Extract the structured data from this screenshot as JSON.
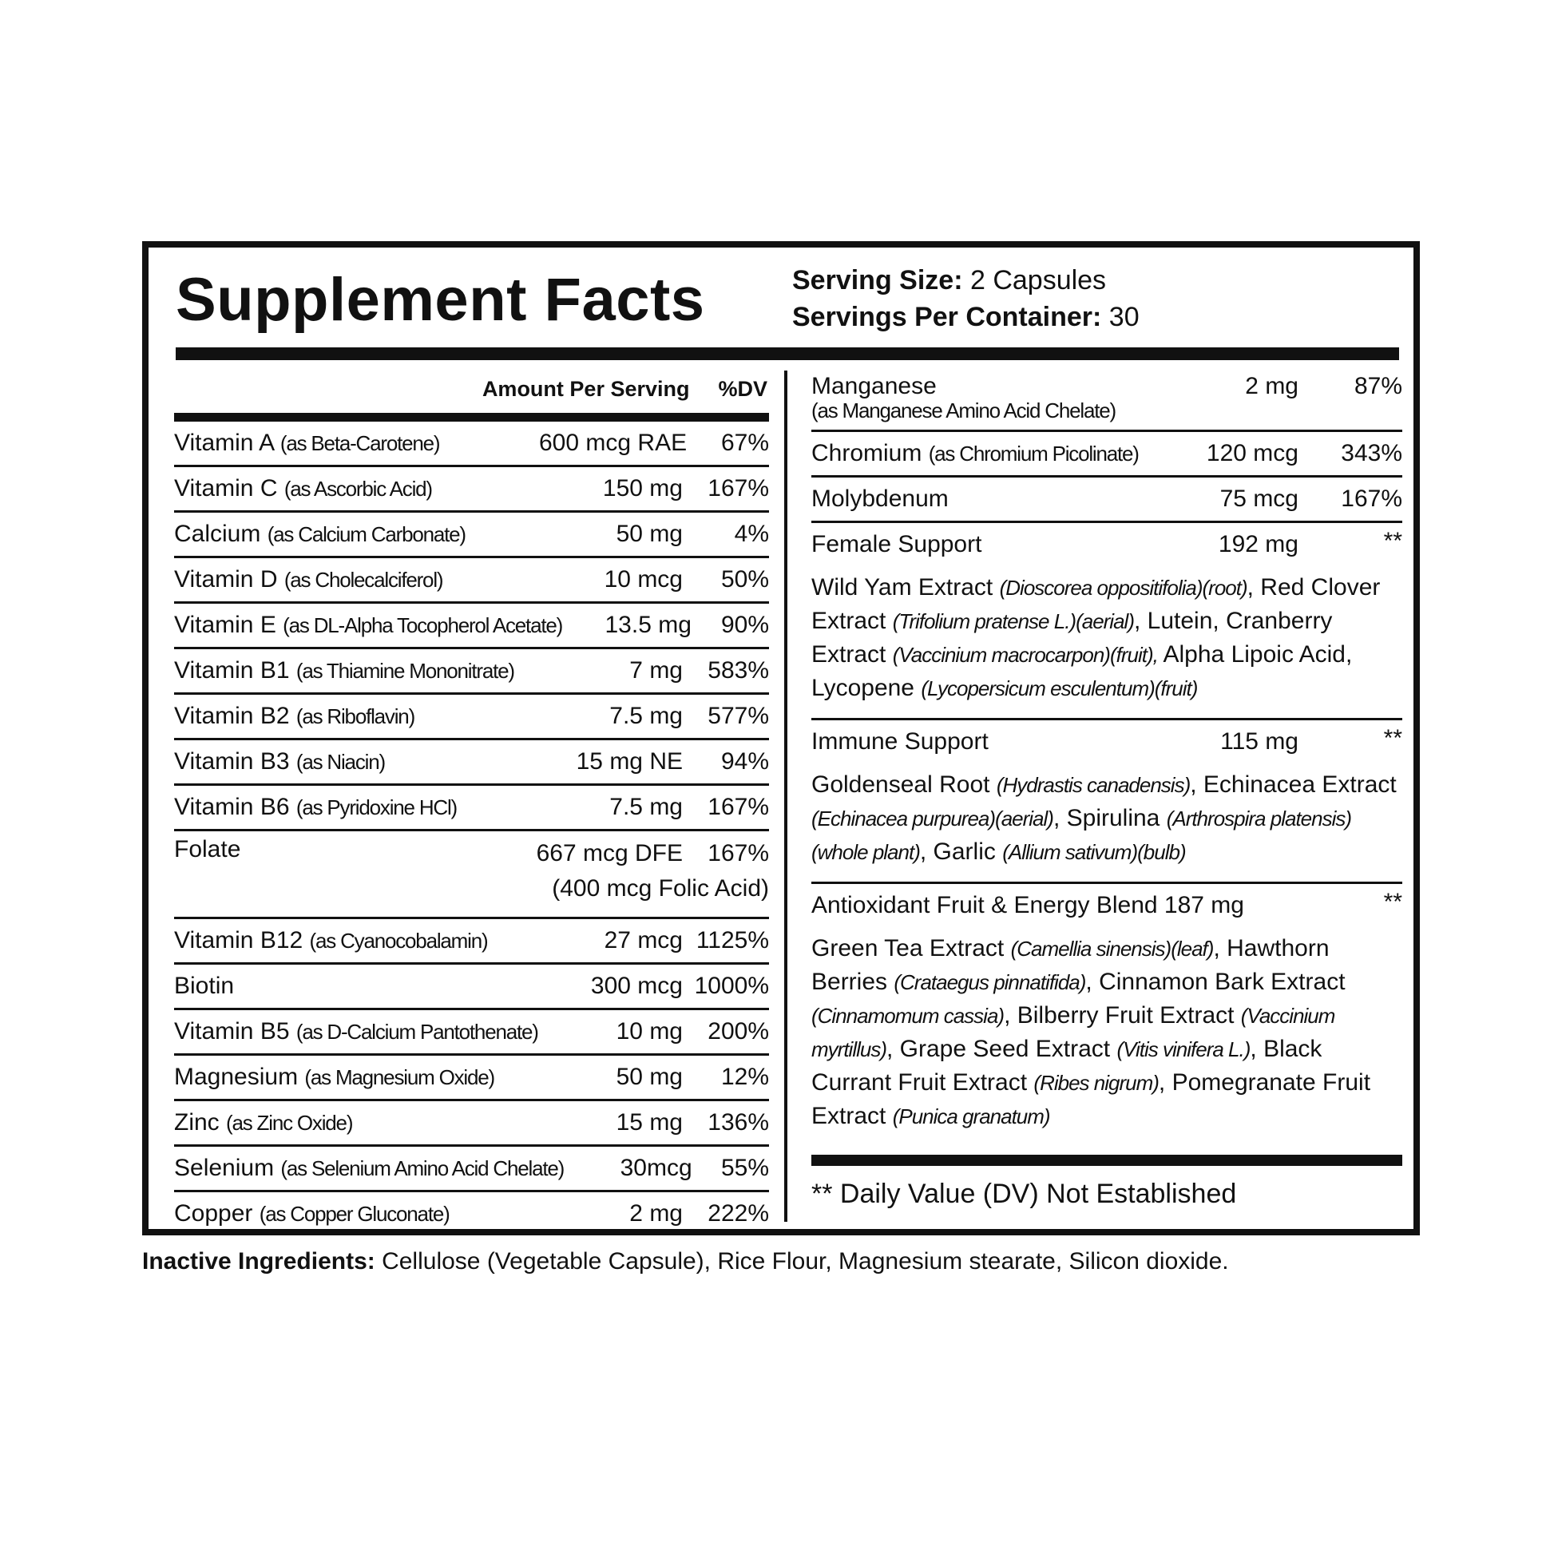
{
  "title": "Supplement Facts",
  "serving": {
    "size_label": "Serving Size:",
    "size_value": " 2 Capsules",
    "per_container_label": "Servings Per Container:",
    "per_container_value": " 30"
  },
  "header": {
    "amount": "Amount Per Serving",
    "dv": "%DV"
  },
  "left_rows": [
    {
      "name": "Vitamin A ",
      "source": "(as Beta-Carotene)",
      "amount": "600 mcg RAE",
      "dv": "67%"
    },
    {
      "name": "Vitamin C ",
      "source": "(as Ascorbic Acid)",
      "amount": "150 mg",
      "dv": "167%"
    },
    {
      "name": "Calcium ",
      "source": "(as Calcium Carbonate)",
      "amount": "50 mg",
      "dv": "4%"
    },
    {
      "name": "Vitamin D ",
      "source": "(as Cholecalciferol)",
      "amount": "10 mcg",
      "dv": "50%"
    },
    {
      "name": "Vitamin E ",
      "source": "(as DL-Alpha Tocopherol Acetate)",
      "amount": "13.5 mg",
      "dv": "90%"
    },
    {
      "name": "Vitamin B1 ",
      "source": "(as Thiamine Mononitrate)",
      "amount": "7 mg",
      "dv": "583%"
    },
    {
      "name": "Vitamin B2 ",
      "source": "(as Riboflavin)",
      "amount": "7.5 mg",
      "dv": "577%"
    },
    {
      "name": "Vitamin B3 ",
      "source": "(as Niacin)",
      "amount": "15 mg NE",
      "dv": "94%"
    },
    {
      "name": "Vitamin B6 ",
      "source": "(as Pyridoxine HCl)",
      "amount": "7.5 mg",
      "dv": "167%"
    },
    {
      "name": "Folate",
      "source": "",
      "amount": "667 mcg DFE",
      "dv": "167%",
      "note": "(400 mcg Folic Acid)"
    },
    {
      "name": "Vitamin B12 ",
      "source": "(as Cyanocobalamin)",
      "amount": "27 mcg",
      "dv": "1125%"
    },
    {
      "name": "Biotin",
      "source": "",
      "amount": "300 mcg",
      "dv": "1000%"
    },
    {
      "name": "Vitamin B5 ",
      "source": "(as D-Calcium Pantothenate)",
      "amount": "10 mg",
      "dv": "200%"
    },
    {
      "name": "Magnesium ",
      "source": "(as Magnesium Oxide)",
      "amount": "50 mg",
      "dv": "12%"
    },
    {
      "name": "Zinc ",
      "source": "(as Zinc Oxide)",
      "amount": "15 mg",
      "dv": "136%"
    },
    {
      "name": "Selenium ",
      "source": "(as Selenium Amino Acid Chelate)",
      "amount": "30mcg",
      "dv": "55%"
    },
    {
      "name": "Copper ",
      "source": "(as Copper Gluconate)",
      "amount": "2 mg",
      "dv": "222%"
    }
  ],
  "right_rows": [
    {
      "name": "Manganese",
      "source": "(as Manganese Amino Acid Chelate)",
      "amount": "2 mg",
      "dv": "87%"
    },
    {
      "name": "Chromium ",
      "source": "(as Chromium Picolinate)",
      "amount": "120 mcg",
      "dv": "343%"
    },
    {
      "name": "Molybdenum",
      "source": "",
      "amount": "75 mcg",
      "dv": "167%"
    }
  ],
  "blends": [
    {
      "name": "Female Support",
      "amount": "192 mg",
      "dv": "**",
      "parts": [
        {
          "t": "Wild Yam Extract "
        },
        {
          "t": "(Dioscorea oppositifolia)(root)",
          "i": true
        },
        {
          "t": ", Red Clover Extract "
        },
        {
          "t": "(Trifolium pratense L.)(aerial)",
          "i": true
        },
        {
          "t": ", Lutein, Cranberry Extract "
        },
        {
          "t": "(Vaccinium macrocarpon)(fruit),",
          "i": true
        },
        {
          "t": " Alpha Lipoic Acid, Lycopene "
        },
        {
          "t": "(Lycopersicum esculentum)(fruit)",
          "i": true
        }
      ]
    },
    {
      "name": "Immune Support",
      "amount": "115 mg",
      "dv": "**",
      "parts": [
        {
          "t": "Goldenseal Root "
        },
        {
          "t": "(Hydrastis canadensis)",
          "i": true
        },
        {
          "t": ", Echinacea Extract "
        },
        {
          "t": "(Echinacea purpurea)(aerial)",
          "i": true
        },
        {
          "t": ", Spirulina "
        },
        {
          "t": "(Arthrospira platensis)(whole plant)",
          "i": true
        },
        {
          "t": ", Garlic "
        },
        {
          "t": "(Allium sativum)(bulb)",
          "i": true
        }
      ]
    },
    {
      "name": "Antioxidant Fruit & Energy Blend 187 mg",
      "amount": "",
      "dv": "**",
      "parts": [
        {
          "t": "Green Tea Extract "
        },
        {
          "t": "(Camellia sinensis)(leaf)",
          "i": true
        },
        {
          "t": ", Hawthorn Berries "
        },
        {
          "t": "(Crataegus pinnatifida)",
          "i": true
        },
        {
          "t": ", Cinnamon Bark Extract "
        },
        {
          "t": "(Cinnamomum cassia)",
          "i": true
        },
        {
          "t": ", Bilberry Fruit Extract "
        },
        {
          "t": "(Vaccinium myrtillus)",
          "i": true
        },
        {
          "t": ", Grape Seed Extract "
        },
        {
          "t": "(Vitis vinifera L.)",
          "i": true
        },
        {
          "t": ", Black Currant Fruit Extract "
        },
        {
          "t": "(Ribes nigrum)",
          "i": true
        },
        {
          "t": ", Pomegranate Fruit Extract "
        },
        {
          "t": "(Punica granatum)",
          "i": true
        }
      ]
    }
  ],
  "footnote": "** Daily Value (DV) Not Established",
  "inactive": {
    "label": "Inactive Ingredients:",
    "text": " Cellulose (Vegetable Capsule), Rice Flour, Magnesium stearate, Silicon dioxide."
  }
}
